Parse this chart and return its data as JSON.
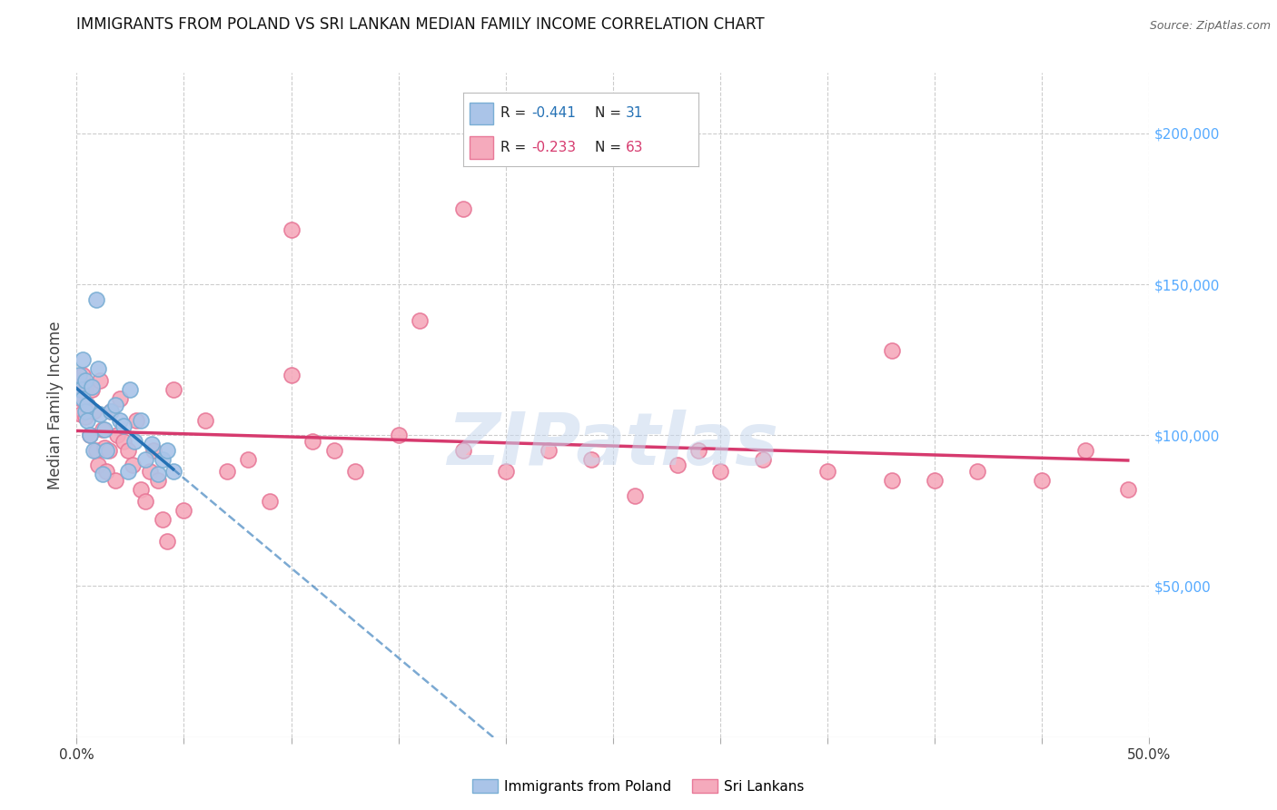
{
  "title": "IMMIGRANTS FROM POLAND VS SRI LANKAN MEDIAN FAMILY INCOME CORRELATION CHART",
  "source": "Source: ZipAtlas.com",
  "ylabel": "Median Family Income",
  "watermark": "ZIPatlas",
  "xlim": [
    0.0,
    0.5
  ],
  "ylim": [
    0,
    220000
  ],
  "yticks": [
    50000,
    100000,
    150000,
    200000
  ],
  "ytick_labels": [
    "$50,000",
    "$100,000",
    "$150,000",
    "$200,000"
  ],
  "xticks": [
    0.0,
    0.05,
    0.1,
    0.15,
    0.2,
    0.25,
    0.3,
    0.35,
    0.4,
    0.45,
    0.5
  ],
  "xtick_labels_show": [
    "0.0%",
    "",
    "",
    "",
    "",
    "",
    "",
    "",
    "",
    "",
    "50.0%"
  ],
  "legend_R1": "-0.441",
  "legend_N1": "31",
  "legend_R2": "-0.233",
  "legend_N2": "63",
  "legend_label1": "Immigrants from Poland",
  "legend_label2": "Sri Lankans",
  "poland_color": "#aac4e8",
  "poland_edge_color": "#7aaed4",
  "srilanka_color": "#f5aabc",
  "srilanka_edge_color": "#e87898",
  "trend_poland_color": "#2471b5",
  "trend_srilanka_color": "#d63a6e",
  "background_color": "#ffffff",
  "grid_color": "#cccccc",
  "title_color": "#111111",
  "source_color": "#666666",
  "ytick_color": "#55aaff",
  "xtick_color": "#333333",
  "poland_x": [
    0.001,
    0.002,
    0.003,
    0.003,
    0.004,
    0.004,
    0.005,
    0.005,
    0.006,
    0.007,
    0.008,
    0.009,
    0.01,
    0.011,
    0.012,
    0.013,
    0.014,
    0.016,
    0.018,
    0.02,
    0.022,
    0.024,
    0.025,
    0.027,
    0.03,
    0.032,
    0.035,
    0.038,
    0.04,
    0.042,
    0.045
  ],
  "poland_y": [
    120000,
    115000,
    125000,
    112000,
    108000,
    118000,
    110000,
    105000,
    100000,
    116000,
    95000,
    145000,
    122000,
    107000,
    87000,
    102000,
    95000,
    108000,
    110000,
    105000,
    103000,
    88000,
    115000,
    98000,
    105000,
    92000,
    97000,
    87000,
    92000,
    95000,
    88000
  ],
  "srilanka_x": [
    0.001,
    0.002,
    0.002,
    0.003,
    0.004,
    0.004,
    0.005,
    0.006,
    0.007,
    0.008,
    0.009,
    0.01,
    0.011,
    0.012,
    0.013,
    0.014,
    0.015,
    0.016,
    0.018,
    0.019,
    0.02,
    0.022,
    0.024,
    0.026,
    0.028,
    0.03,
    0.032,
    0.034,
    0.036,
    0.038,
    0.04,
    0.042,
    0.045,
    0.05,
    0.06,
    0.07,
    0.08,
    0.09,
    0.1,
    0.11,
    0.12,
    0.13,
    0.15,
    0.16,
    0.18,
    0.2,
    0.22,
    0.24,
    0.26,
    0.28,
    0.3,
    0.32,
    0.35,
    0.38,
    0.4,
    0.42,
    0.45,
    0.47,
    0.49,
    0.1,
    0.18,
    0.38,
    0.29
  ],
  "srilanka_y": [
    118000,
    112000,
    107000,
    120000,
    115000,
    106000,
    110000,
    100000,
    115000,
    108000,
    95000,
    90000,
    118000,
    102000,
    96000,
    88000,
    95000,
    108000,
    85000,
    100000,
    112000,
    98000,
    95000,
    90000,
    105000,
    82000,
    78000,
    88000,
    95000,
    85000,
    72000,
    65000,
    115000,
    75000,
    105000,
    88000,
    92000,
    78000,
    120000,
    98000,
    95000,
    88000,
    100000,
    138000,
    95000,
    88000,
    95000,
    92000,
    80000,
    90000,
    88000,
    92000,
    88000,
    85000,
    85000,
    88000,
    85000,
    95000,
    82000,
    168000,
    175000,
    128000,
    95000
  ]
}
